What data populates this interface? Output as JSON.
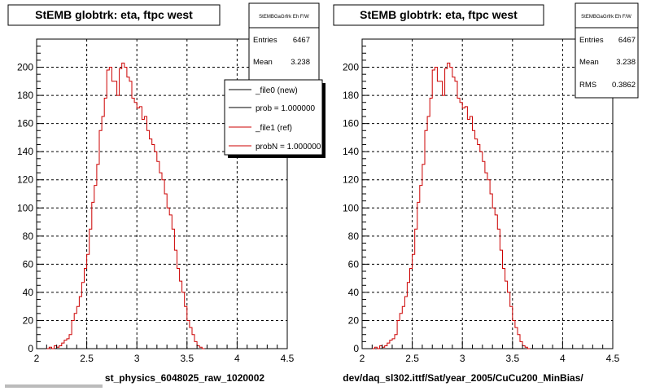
{
  "chart_data": [
    {
      "type": "histogram",
      "title": "StEMB globtrk: eta, ftpc west",
      "xlabel": "st_physics_6048025_raw_1020002",
      "ylabel": "",
      "xlim": [
        2,
        4.5
      ],
      "ylim": [
        0,
        220
      ],
      "grid": true,
      "x_ticks": [
        "2",
        "2.5",
        "3",
        "3.5",
        "4",
        "4.5"
      ],
      "y_ticks": [
        "0",
        "20",
        "40",
        "60",
        "80",
        "100",
        "120",
        "140",
        "160",
        "180",
        "200"
      ],
      "bin_start": 2.1,
      "bin_width": 0.025,
      "series": [
        {
          "color": "#cc0000",
          "values": [
            0,
            1,
            0,
            2,
            1,
            2,
            4,
            6,
            7,
            10,
            20,
            25,
            30,
            37,
            47,
            57,
            67,
            85,
            104,
            116,
            131,
            155,
            165,
            178,
            198,
            200,
            190,
            190,
            180,
            199,
            203,
            200,
            193,
            190,
            178,
            175,
            171,
            172,
            163,
            165,
            155,
            149,
            145,
            140,
            133,
            125,
            120,
            110,
            100,
            95,
            85,
            70,
            57,
            48,
            40,
            30,
            20,
            15,
            10,
            5,
            2,
            1,
            0
          ]
        }
      ],
      "stats": {
        "title": "StEMBGaGrfrk Eh F/W",
        "rows": [
          {
            "label": "Entries",
            "value": "6467"
          },
          {
            "label": "Mean",
            "value": "3.238"
          }
        ]
      },
      "legend": {
        "position": "top-right",
        "entries": [
          {
            "label": "_file0 (new)",
            "color": "#000000"
          },
          {
            "label": "prob = 1.000000",
            "color": "#000000"
          },
          {
            "label": "_file1 (ref)",
            "color": "#cc0000"
          },
          {
            "label": "probN = 1.000000",
            "color": "#cc0000"
          }
        ]
      }
    },
    {
      "type": "histogram",
      "title": "StEMB globtrk: eta, ftpc west",
      "xlabel": "dev/daq_sl302.ittf/Sat/year_2005/CuCu200_MinBias/",
      "ylabel": "",
      "xlim": [
        2,
        4.5
      ],
      "ylim": [
        0,
        220
      ],
      "grid": true,
      "x_ticks": [
        "2",
        "2.5",
        "3",
        "3.5",
        "4",
        "4.5"
      ],
      "y_ticks": [
        "0",
        "20",
        "40",
        "60",
        "80",
        "100",
        "120",
        "140",
        "160",
        "180",
        "200"
      ],
      "bin_start": 2.1,
      "bin_width": 0.025,
      "series": [
        {
          "color": "#cc0000",
          "values": [
            0,
            1,
            0,
            2,
            1,
            2,
            4,
            6,
            7,
            10,
            20,
            25,
            30,
            37,
            47,
            57,
            67,
            85,
            104,
            116,
            131,
            155,
            165,
            178,
            198,
            200,
            190,
            190,
            180,
            199,
            203,
            200,
            193,
            190,
            178,
            175,
            171,
            172,
            163,
            165,
            155,
            149,
            145,
            140,
            133,
            125,
            120,
            110,
            100,
            95,
            85,
            70,
            57,
            48,
            40,
            30,
            20,
            15,
            10,
            5,
            2,
            1,
            0
          ]
        }
      ],
      "stats": {
        "title": "StEMBGaGrfrk Eh F/W",
        "rows": [
          {
            "label": "Entries",
            "value": "6467"
          },
          {
            "label": "Mean",
            "value": "3.238"
          },
          {
            "label": "RMS",
            "value": "0.3862"
          }
        ]
      }
    }
  ]
}
